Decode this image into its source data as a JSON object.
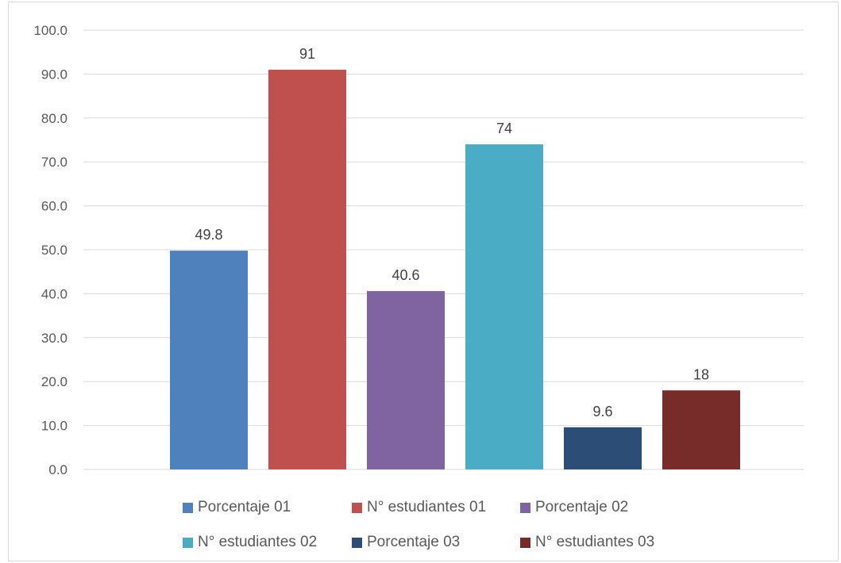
{
  "chart_data": {
    "type": "bar",
    "title": "",
    "xlabel": "",
    "ylabel": "",
    "ylim": [
      0,
      100
    ],
    "y_ticks": [
      "0.0",
      "10.0",
      "20.0",
      "30.0",
      "40.0",
      "50.0",
      "60.0",
      "70.0",
      "80.0",
      "90.0",
      "100.0"
    ],
    "grid": true,
    "legend_position": "bottom",
    "series": [
      {
        "name": "Porcentaje 01",
        "value": 49.8,
        "label": "49.8",
        "color": "#4f81bd"
      },
      {
        "name": "N° estudiantes 01",
        "value": 91,
        "label": "91",
        "color": "#c0504d"
      },
      {
        "name": "Porcentaje 02",
        "value": 40.6,
        "label": "40.6",
        "color": "#8064a2"
      },
      {
        "name": "N° estudiantes 02",
        "value": 74,
        "label": "74",
        "color": "#4bacc6"
      },
      {
        "name": "Porcentaje 03",
        "value": 9.6,
        "label": "9.6",
        "color": "#2c4d75"
      },
      {
        "name": "N° estudiantes 03",
        "value": 18,
        "label": "18",
        "color": "#772c2a"
      }
    ]
  }
}
